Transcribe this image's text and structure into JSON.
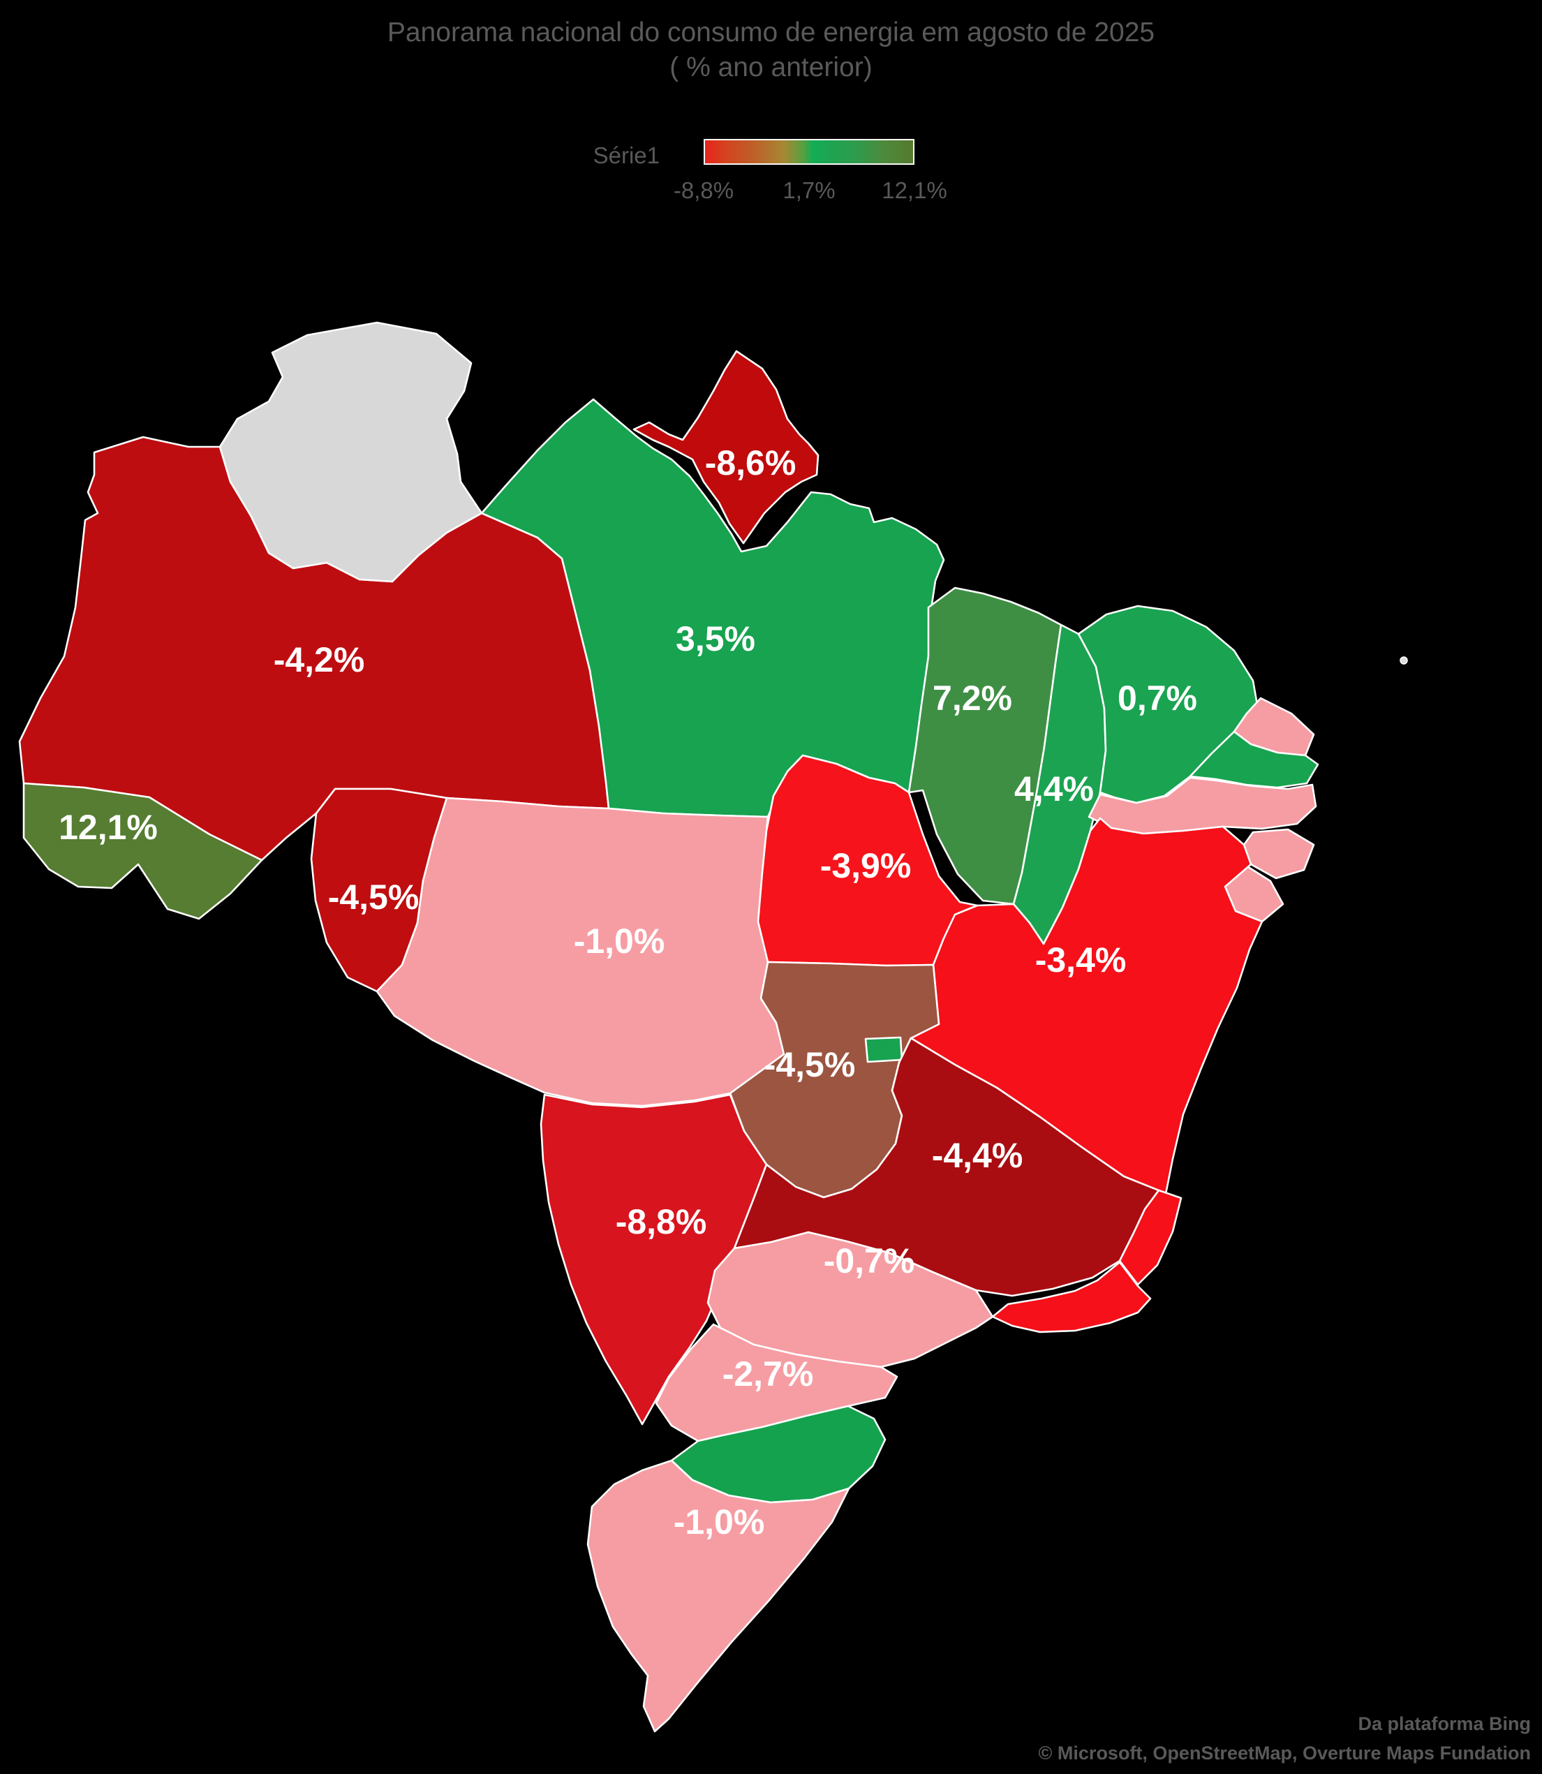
{
  "title": {
    "line1": "Panorama nacional do consumo de energia em agosto de 2025",
    "line2": "( % ano anterior)"
  },
  "legend": {
    "series_label": "Série1",
    "min_label": "-8,8%",
    "mid_label": "1,7%",
    "max_label": "12,1%",
    "gradient_min_color": "#E8231D",
    "gradient_mid_color": "#12AC55",
    "gradient_max_color": "#55792E"
  },
  "attribution": {
    "line1": "Da plataforma Bing",
    "line2": "© Microsoft, OpenStreetMap, Overture Maps Fundation"
  },
  "chart_data": {
    "type": "choropleth_map",
    "region": "Brazil (states)",
    "series_name": "Série1",
    "unit": "% vs ano anterior",
    "color_scale": {
      "min": -8.8,
      "mid": 1.7,
      "max": 12.1,
      "min_color": "#E8231D",
      "mid_color": "#12AC55",
      "max_color": "#55792E",
      "no_data_color": "#D8D8D8"
    },
    "states": [
      {
        "code": "AM",
        "name": "Amazonas",
        "value": -4.2,
        "label": "-4,2%",
        "color": "#BE0D11"
      },
      {
        "code": "RR",
        "name": "Roraima",
        "value": null,
        "label": "",
        "color": "#D8D8D8"
      },
      {
        "code": "PA",
        "name": "Pará",
        "value": 3.5,
        "label": "3,5%",
        "color": "#17A350"
      },
      {
        "code": "AP",
        "name": "Amapá",
        "value": -8.6,
        "label": "-8,6%",
        "color": "#C00A0C"
      },
      {
        "code": "AC",
        "name": "Acre",
        "value": 12.1,
        "label": "12,1%",
        "color": "#567D31"
      },
      {
        "code": "RO",
        "name": "Rondônia",
        "value": -4.5,
        "label": "-4,5%",
        "color": "#BF0D10"
      },
      {
        "code": "MT",
        "name": "Mato Grosso",
        "value": -1.0,
        "label": "-1,0%",
        "color": "#F59DA3"
      },
      {
        "code": "TO",
        "name": "Tocantins",
        "value": -3.9,
        "label": "-3,9%",
        "color": "#F6131B"
      },
      {
        "code": "MA",
        "name": "Maranhão",
        "value": 7.2,
        "label": "7,2%",
        "color": "#3E8F44"
      },
      {
        "code": "PI",
        "name": "Piauí",
        "value": 4.4,
        "label": "4,4%",
        "color": "#1CA351"
      },
      {
        "code": "CE",
        "name": "Ceará",
        "value": 0.7,
        "label": "0,7%",
        "color": "#1AA351"
      },
      {
        "code": "RN",
        "name": "Rio Grande do Norte",
        "value": null,
        "label": "",
        "color": "#F59DA3"
      },
      {
        "code": "PB",
        "name": "Paraíba",
        "value": null,
        "label": "",
        "color": "#17A350"
      },
      {
        "code": "PE",
        "name": "Pernambuco",
        "value": null,
        "label": "",
        "color": "#F59DA3"
      },
      {
        "code": "AL",
        "name": "Alagoas",
        "value": null,
        "label": "",
        "color": "#F59DA3"
      },
      {
        "code": "SE",
        "name": "Sergipe",
        "value": null,
        "label": "",
        "color": "#F59DA3"
      },
      {
        "code": "BA",
        "name": "Bahia",
        "value": -3.4,
        "label": "-3,4%",
        "color": "#F5101A"
      },
      {
        "code": "GO",
        "name": "Goiás",
        "value": -4.5,
        "label": "-4,5%",
        "color": "#9B5540"
      },
      {
        "code": "DF",
        "name": "Distrito Federal",
        "value": null,
        "label": "",
        "color": "#17A350"
      },
      {
        "code": "MS",
        "name": "Mato Grosso do Sul",
        "value": -8.8,
        "label": "-8,8%",
        "color": "#D8141E"
      },
      {
        "code": "MG",
        "name": "Minas Gerais",
        "value": -4.4,
        "label": "-4,4%",
        "color": "#A90D11"
      },
      {
        "code": "ES",
        "name": "Espírito Santo",
        "value": null,
        "label": "",
        "color": "#F5101A"
      },
      {
        "code": "RJ",
        "name": "Rio de Janeiro",
        "value": null,
        "label": "",
        "color": "#F5101A"
      },
      {
        "code": "SP",
        "name": "São Paulo",
        "value": -0.7,
        "label": "-0,7%",
        "color": "#F59DA3"
      },
      {
        "code": "PR",
        "name": "Paraná",
        "value": -2.7,
        "label": "-2,7%",
        "color": "#F59DA3"
      },
      {
        "code": "SC",
        "name": "Santa Catarina",
        "value": null,
        "label": "",
        "color": "#14A24E"
      },
      {
        "code": "RS",
        "name": "Rio Grande do Sul",
        "value": -1.0,
        "label": "-1,0%",
        "color": "#F59DA3"
      }
    ]
  }
}
